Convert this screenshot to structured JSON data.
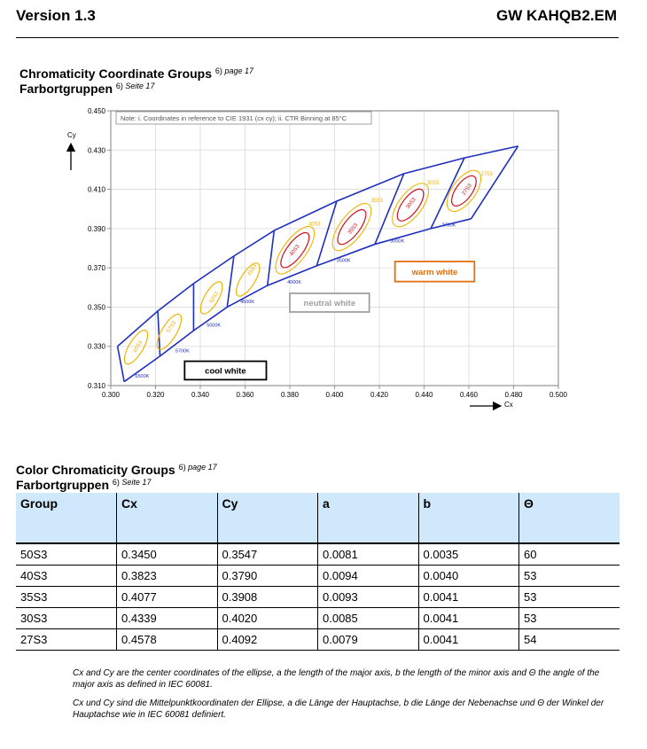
{
  "header": {
    "left": "Version 1.3",
    "right": "GW KAHQB2.EM"
  },
  "section1": {
    "title_en": "Chromaticity Coordinate Groups",
    "ref_en_num": "6)",
    "ref_en": "page 17",
    "title_de": "Farbortgruppen",
    "ref_de_num": "6)",
    "ref_de": "Seite 17"
  },
  "chart_data": {
    "type": "scatter",
    "note": "Note: i. Coordinates in reference to CIE 1931 (cx cy); ii. CTR Binning at 85°C",
    "xlabel": "Cx",
    "ylabel": "Cy",
    "xlim": [
      0.3,
      0.5
    ],
    "ylim": [
      0.31,
      0.45
    ],
    "x_ticks": [
      "0.300",
      "0.320",
      "0.340",
      "0.360",
      "0.380",
      "0.400",
      "0.420",
      "0.440",
      "0.460",
      "0.480",
      "0.500"
    ],
    "y_ticks": [
      "0.310",
      "0.330",
      "0.350",
      "0.370",
      "0.390",
      "0.410",
      "0.430",
      "0.450"
    ],
    "x_tick_values": [
      0.3,
      0.32,
      0.34,
      0.36,
      0.38,
      0.4,
      0.42,
      0.44,
      0.46,
      0.48,
      0.5
    ],
    "y_tick_values": [
      0.31,
      0.33,
      0.35,
      0.37,
      0.39,
      0.41,
      0.43,
      0.45
    ],
    "grid": true,
    "colors": {
      "outline": "#1f2fbf",
      "yellow": "#f0b400",
      "red": "#d01020",
      "warm": "#e07010",
      "neutral": "#a0a0a0",
      "cool": "#000000"
    },
    "upper_boundary": [
      [
        0.303,
        0.33
      ],
      [
        0.321,
        0.348
      ],
      [
        0.337,
        0.362
      ],
      [
        0.355,
        0.376
      ],
      [
        0.373,
        0.389
      ],
      [
        0.401,
        0.404
      ],
      [
        0.431,
        0.418
      ],
      [
        0.458,
        0.426
      ],
      [
        0.482,
        0.432
      ]
    ],
    "lower_boundary": [
      [
        0.306,
        0.312
      ],
      [
        0.322,
        0.325
      ],
      [
        0.337,
        0.338
      ],
      [
        0.352,
        0.35
      ],
      [
        0.37,
        0.361
      ],
      [
        0.392,
        0.371
      ],
      [
        0.418,
        0.382
      ],
      [
        0.443,
        0.39
      ],
      [
        0.461,
        0.395
      ]
    ],
    "temperature_labels": [
      {
        "text": "6500K",
        "x": 0.314,
        "y": 0.314
      },
      {
        "text": "5700K",
        "x": 0.332,
        "y": 0.327
      },
      {
        "text": "5000K",
        "x": 0.346,
        "y": 0.34
      },
      {
        "text": "4500K",
        "x": 0.361,
        "y": 0.352
      },
      {
        "text": "4000K",
        "x": 0.382,
        "y": 0.362
      },
      {
        "text": "3500K",
        "x": 0.404,
        "y": 0.373
      },
      {
        "text": "3000K",
        "x": 0.428,
        "y": 0.383
      },
      {
        "text": "2700K",
        "x": 0.451,
        "y": 0.391
      }
    ],
    "groups": [
      {
        "name": "65S3",
        "cx": 0.3113,
        "cy": 0.3296,
        "a": 0.0086,
        "b": 0.0036,
        "theta": 59,
        "color": "yellow",
        "label_x": 0.312,
        "label_y": 0.33
      },
      {
        "name": "57S3",
        "cx": 0.3261,
        "cy": 0.3374,
        "a": 0.009,
        "b": 0.0037,
        "theta": 59,
        "color": "yellow",
        "label_x": 0.327,
        "label_y": 0.34
      },
      {
        "name": "50S3",
        "cx": 0.345,
        "cy": 0.3547,
        "a": 0.0081,
        "b": 0.0035,
        "theta": 60,
        "color": "yellow",
        "label_x": 0.346,
        "label_y": 0.355
      },
      {
        "name": "45S3",
        "cx": 0.3613,
        "cy": 0.364,
        "a": 0.0085,
        "b": 0.0036,
        "theta": 58,
        "color": "yellow",
        "label_x": 0.363,
        "label_y": 0.369
      },
      {
        "name": "40S3",
        "cx": 0.3823,
        "cy": 0.379,
        "a": 0.0094,
        "b": 0.004,
        "theta": 53,
        "color": "red",
        "label_x": 0.382,
        "label_y": 0.379
      },
      {
        "name": "35S3",
        "cx": 0.4077,
        "cy": 0.3908,
        "a": 0.0093,
        "b": 0.0041,
        "theta": 53,
        "color": "red",
        "label_x": 0.408,
        "label_y": 0.39
      },
      {
        "name": "30S3",
        "cx": 0.4339,
        "cy": 0.402,
        "a": 0.0085,
        "b": 0.0041,
        "theta": 53,
        "color": "red",
        "label_x": 0.434,
        "label_y": 0.403
      },
      {
        "name": "27S3",
        "cx": 0.4578,
        "cy": 0.4092,
        "a": 0.0079,
        "b": 0.0041,
        "theta": 54,
        "color": "red",
        "label_x": 0.459,
        "label_y": 0.41
      }
    ],
    "outer_labels": [
      {
        "text": "4053",
        "x": 0.391,
        "y": 0.3915
      },
      {
        "text": "3553",
        "x": 0.419,
        "y": 0.4035
      },
      {
        "text": "3053",
        "x": 0.444,
        "y": 0.4125
      },
      {
        "text": "2753",
        "x": 0.468,
        "y": 0.417
      }
    ],
    "category_boxes": [
      {
        "text": "warm white",
        "x1": 0.427,
        "y1": 0.3732,
        "x2": 0.4625,
        "y2": 0.363,
        "color": "warm"
      },
      {
        "text": "neutral white",
        "x1": 0.38,
        "y1": 0.357,
        "x2": 0.4155,
        "y2": 0.3475,
        "color": "neutral"
      },
      {
        "text": "cool white",
        "x1": 0.333,
        "y1": 0.3224,
        "x2": 0.3695,
        "y2": 0.313,
        "color": "cool"
      }
    ]
  },
  "section2": {
    "title_en": "Color Chromaticity Groups",
    "ref_en_num": "6)",
    "ref_en": "page 17",
    "title_de": "Farbortgruppen",
    "ref_de_num": "6)",
    "ref_de": "Seite 17"
  },
  "table": {
    "headers": [
      "Group",
      "Cx",
      "Cy",
      "a",
      "b",
      "Θ"
    ],
    "rows": [
      [
        "50S3",
        "0.3450",
        "0.3547",
        "0.0081",
        "0.0035",
        "60"
      ],
      [
        "40S3",
        "0.3823",
        "0.3790",
        "0.0094",
        "0.0040",
        "53"
      ],
      [
        "35S3",
        "0.4077",
        "0.3908",
        "0.0093",
        "0.0041",
        "53"
      ],
      [
        "30S3",
        "0.4339",
        "0.4020",
        "0.0085",
        "0.0041",
        "53"
      ],
      [
        "27S3",
        "0.4578",
        "0.4092",
        "0.0079",
        "0.0041",
        "54"
      ]
    ]
  },
  "footnotes": {
    "en": "Cx and Cy are the center coordinates of the ellipse, a the length of the major axis, b the length of the minor axis and Θ the angle of the major axis as defined in IEC 60081.",
    "de": "Cx und Cy sind die Mittelpunktkoordinaten der Ellipse, a die Länge der Hauptachse, b die Länge der Nebenachse und Θ der Winkel der Hauptachse wie in IEC 60081 definiert."
  }
}
